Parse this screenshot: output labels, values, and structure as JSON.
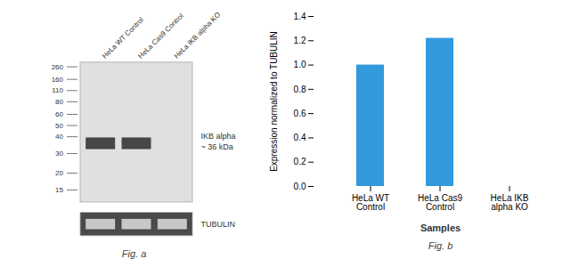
{
  "chart_data": [
    {
      "type": "blot",
      "categories": [
        "HeLa WT Control",
        "HeLa Cas9 Control",
        "HeLa IKB alpha KO"
      ],
      "bands": [
        true,
        true,
        false
      ],
      "markers": [
        260,
        160,
        110,
        80,
        60,
        50,
        40,
        30,
        20,
        15
      ],
      "annotations": [
        "IKB alpha\n~ 36 kDa",
        "TUBULIN"
      ],
      "caption": "Fig. a"
    },
    {
      "type": "bar",
      "categories": [
        "HeLa WT Control",
        "HeLa Cas9 Control",
        "HeLa IKB alpha KO"
      ],
      "values": [
        1.0,
        1.22,
        0.0
      ],
      "color": "#3399dd",
      "xlabel": "Samples",
      "ylabel": "Expression normalized to TUBULIN",
      "ylim": [
        0,
        1.4
      ],
      "yticks": [
        {
          "value": 0,
          "label": "0.0"
        },
        0.2,
        0.4,
        0.6,
        0.8,
        {
          "value": 1.0,
          "label": "1.0"
        },
        1.2,
        1.4
      ],
      "caption": "Fig. b"
    }
  ]
}
